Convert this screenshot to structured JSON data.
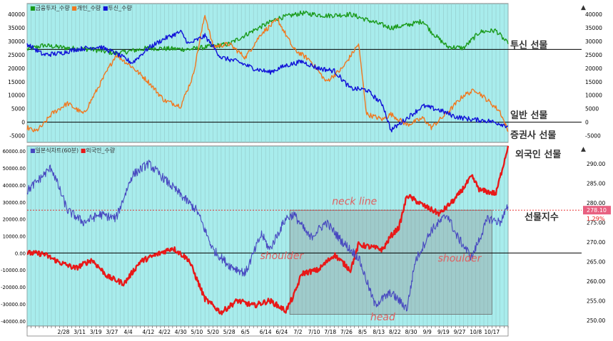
{
  "colors": {
    "plot_bg": "#a8ecec",
    "grid": "#93c8c8",
    "frame": "#808080",
    "orange": "#f07820",
    "blue": "#1010d8",
    "green": "#1a9a1a",
    "red": "#e81818",
    "price_blue": "#4848c0",
    "annotation": "#e06060",
    "current_box": "#e86080",
    "shade": "#909090"
  },
  "chart_data": [
    {
      "type": "line",
      "panel": "top",
      "legend": [
        "금융투자_수량",
        "개인_수량",
        "투신_수량"
      ],
      "y_ticks": [
        40000,
        35000,
        30000,
        25000,
        20000,
        15000,
        10000,
        5000,
        0,
        -5000
      ],
      "ylim": [
        -7500,
        44000
      ],
      "series": [
        {
          "name": "금융투자_수량",
          "color": "green",
          "anchors": [
            [
              0,
              27000
            ],
            [
              4,
              28500
            ],
            [
              10,
              27500
            ],
            [
              16,
              27000
            ],
            [
              22,
              25500
            ],
            [
              30,
              27500
            ],
            [
              40,
              27000
            ],
            [
              50,
              29000
            ],
            [
              56,
              34000
            ],
            [
              62,
              38500
            ],
            [
              68,
              40500
            ],
            [
              74,
              39500
            ],
            [
              80,
              40000
            ],
            [
              86,
              37000
            ],
            [
              90,
              35000
            ],
            [
              94,
              36000
            ],
            [
              98,
              37500
            ],
            [
              100,
              33500
            ],
            [
              104,
              28000
            ],
            [
              108,
              27500
            ],
            [
              112,
              33500
            ],
            [
              116,
              34000
            ],
            [
              119,
              29000
            ]
          ]
        },
        {
          "name": "개인_수량",
          "color": "orange",
          "anchors": [
            [
              0,
              -2000
            ],
            [
              2,
              -3500
            ],
            [
              4,
              -1000
            ],
            [
              6,
              3000
            ],
            [
              10,
              7000
            ],
            [
              14,
              3000
            ],
            [
              18,
              14000
            ],
            [
              22,
              25000
            ],
            [
              26,
              20500
            ],
            [
              30,
              15000
            ],
            [
              34,
              8000
            ],
            [
              38,
              6000
            ],
            [
              41,
              17000
            ],
            [
              44,
              40000
            ],
            [
              46,
              28000
            ],
            [
              50,
              29000
            ],
            [
              54,
              24000
            ],
            [
              58,
              33000
            ],
            [
              62,
              38000
            ],
            [
              66,
              27000
            ],
            [
              70,
              23000
            ],
            [
              74,
              15000
            ],
            [
              78,
              20000
            ],
            [
              82,
              29000
            ],
            [
              84,
              3000
            ],
            [
              88,
              1000
            ],
            [
              90,
              3000
            ],
            [
              94,
              -1000
            ],
            [
              98,
              1500
            ],
            [
              100,
              -2000
            ],
            [
              104,
              3500
            ],
            [
              108,
              10000
            ],
            [
              111,
              12000
            ],
            [
              114,
              8000
            ],
            [
              117,
              4000
            ],
            [
              119,
              -3500
            ]
          ]
        },
        {
          "name": "투신_수량",
          "color": "blue",
          "anchors": [
            [
              0,
              29000
            ],
            [
              4,
              25000
            ],
            [
              8,
              25500
            ],
            [
              12,
              27000
            ],
            [
              18,
              28000
            ],
            [
              22,
              25500
            ],
            [
              26,
              22000
            ],
            [
              30,
              27500
            ],
            [
              34,
              31000
            ],
            [
              38,
              33500
            ],
            [
              40,
              29000
            ],
            [
              44,
              32000
            ],
            [
              48,
              24000
            ],
            [
              52,
              22500
            ],
            [
              56,
              20000
            ],
            [
              60,
              18500
            ],
            [
              64,
              21000
            ],
            [
              68,
              22500
            ],
            [
              72,
              20000
            ],
            [
              76,
              19000
            ],
            [
              80,
              12500
            ],
            [
              84,
              12000
            ],
            [
              88,
              6500
            ],
            [
              90,
              -3000
            ],
            [
              94,
              1500
            ],
            [
              98,
              6000
            ],
            [
              102,
              4500
            ],
            [
              106,
              2000
            ],
            [
              110,
              1000
            ],
            [
              114,
              500
            ],
            [
              117,
              -500
            ],
            [
              119,
              -1500
            ]
          ]
        }
      ],
      "h_lines": [
        27000,
        0
      ],
      "labels": [
        {
          "text": "투신 선물",
          "y": 27000
        },
        {
          "text": "일반 선물",
          "y": 1000
        },
        {
          "text": "증권사 선물",
          "y": -6500
        }
      ]
    },
    {
      "type": "line",
      "panel": "bottom",
      "legend": [
        "일본식차트(60분)",
        "외국인_수량"
      ],
      "y_ticks_left": [
        60000,
        50000,
        40000,
        30000,
        20000,
        10000,
        0,
        -10000,
        -20000,
        -30000,
        -40000
      ],
      "y_ticks_left_labels": [
        "60000.00",
        "50000.00",
        "40000.00",
        "30000.00",
        "20000.00",
        "10000.00",
        "0.00",
        "-10000.00",
        "-20000.00",
        "-30000.00",
        "-40000.00"
      ],
      "ylim_left": [
        -43000,
        63000
      ],
      "y_ticks_right": [
        290,
        285,
        280,
        275,
        270,
        265,
        260,
        255,
        250
      ],
      "y_ticks_right_labels": [
        "290.00",
        "285.00",
        "280.00",
        "275.00",
        "270.00",
        "265.00",
        "260.00",
        "255.00",
        "250.00"
      ],
      "ylim_right": [
        248.5,
        294.5
      ],
      "series": [
        {
          "name": "외국인_수량",
          "color": "red",
          "axis": "left",
          "anchors": [
            [
              0,
              0
            ],
            [
              4,
              -500
            ],
            [
              8,
              -5500
            ],
            [
              12,
              -9000
            ],
            [
              16,
              -4000
            ],
            [
              20,
              -14000
            ],
            [
              24,
              -18000
            ],
            [
              28,
              -5000
            ],
            [
              32,
              -1000
            ],
            [
              36,
              3000
            ],
            [
              40,
              -4000
            ],
            [
              44,
              -27000
            ],
            [
              48,
              -35000
            ],
            [
              52,
              -28000
            ],
            [
              56,
              -31000
            ],
            [
              60,
              -28000
            ],
            [
              64,
              -34000
            ],
            [
              66,
              -25000
            ],
            [
              68,
              -12000
            ],
            [
              72,
              -10000
            ],
            [
              76,
              -1000
            ],
            [
              80,
              -10000
            ],
            [
              82,
              5000
            ],
            [
              86,
              3000
            ],
            [
              88,
              2000
            ],
            [
              90,
              10000
            ],
            [
              92,
              15000
            ],
            [
              94,
              34000
            ],
            [
              98,
              28000
            ],
            [
              102,
              23000
            ],
            [
              106,
              32000
            ],
            [
              110,
              45000
            ],
            [
              112,
              37000
            ],
            [
              116,
              35000
            ],
            [
              119,
              63000
            ]
          ]
        },
        {
          "name": "일본식차트(60분)",
          "color": "price_blue",
          "axis": "right",
          "anchors": [
            [
              0,
              283
            ],
            [
              6,
              289
            ],
            [
              10,
              278
            ],
            [
              14,
              275
            ],
            [
              18,
              277
            ],
            [
              22,
              276
            ],
            [
              26,
              287
            ],
            [
              30,
              290
            ],
            [
              34,
              286
            ],
            [
              38,
              282
            ],
            [
              42,
              278
            ],
            [
              46,
              268
            ],
            [
              50,
              264
            ],
            [
              54,
              262
            ],
            [
              58,
              272
            ],
            [
              60,
              268
            ],
            [
              64,
              276
            ],
            [
              66,
              277
            ],
            [
              70,
              271
            ],
            [
              74,
              275
            ],
            [
              78,
              270
            ],
            [
              82,
              266
            ],
            [
              86,
              254
            ],
            [
              90,
              257
            ],
            [
              94,
              253
            ],
            [
              96,
              265
            ],
            [
              100,
              273
            ],
            [
              104,
              277
            ],
            [
              106,
              272
            ],
            [
              110,
              266
            ],
            [
              114,
              276
            ],
            [
              117,
              275
            ],
            [
              119,
              279
            ]
          ]
        }
      ],
      "h_lines_left": [
        0
      ],
      "h_line_current": 278.1,
      "current_value": "278.10",
      "current_change": "1.29%",
      "labels": [
        {
          "text": "외국인 선물"
        },
        {
          "text": "선물지수"
        }
      ],
      "annotations": [
        "neck line",
        "shoulder",
        "shoulder",
        "head"
      ],
      "shaded_region": {
        "x_from": 65,
        "x_to": 115,
        "y_from": 278.1,
        "y_to": 251.5
      }
    }
  ],
  "x_axis": {
    "count": 120,
    "tick_labels": [
      {
        "i": 9,
        "text": "2/28"
      },
      {
        "i": 13,
        "text": "3/11"
      },
      {
        "i": 17,
        "text": "3/19"
      },
      {
        "i": 21,
        "text": "3/27"
      },
      {
        "i": 25,
        "text": "4/4"
      },
      {
        "i": 30,
        "text": "4/12"
      },
      {
        "i": 34,
        "text": "4/22"
      },
      {
        "i": 38,
        "text": "4/30"
      },
      {
        "i": 42,
        "text": "5/10"
      },
      {
        "i": 46,
        "text": "5/20"
      },
      {
        "i": 50,
        "text": "5/28"
      },
      {
        "i": 54,
        "text": "6/5"
      },
      {
        "i": 59,
        "text": "6/14"
      },
      {
        "i": 63,
        "text": "6/24"
      },
      {
        "i": 67,
        "text": "7/2"
      },
      {
        "i": 71,
        "text": "7/10"
      },
      {
        "i": 75,
        "text": "7/18"
      },
      {
        "i": 79,
        "text": "7/26"
      },
      {
        "i": 83,
        "text": "8/5"
      },
      {
        "i": 87,
        "text": "8/13"
      },
      {
        "i": 91,
        "text": "8/22"
      },
      {
        "i": 95,
        "text": "8/30"
      },
      {
        "i": 99,
        "text": "9/9"
      },
      {
        "i": 103,
        "text": "9/19"
      },
      {
        "i": 107,
        "text": "9/27"
      },
      {
        "i": 111,
        "text": "10/8"
      },
      {
        "i": 115,
        "text": "10/17"
      }
    ]
  }
}
